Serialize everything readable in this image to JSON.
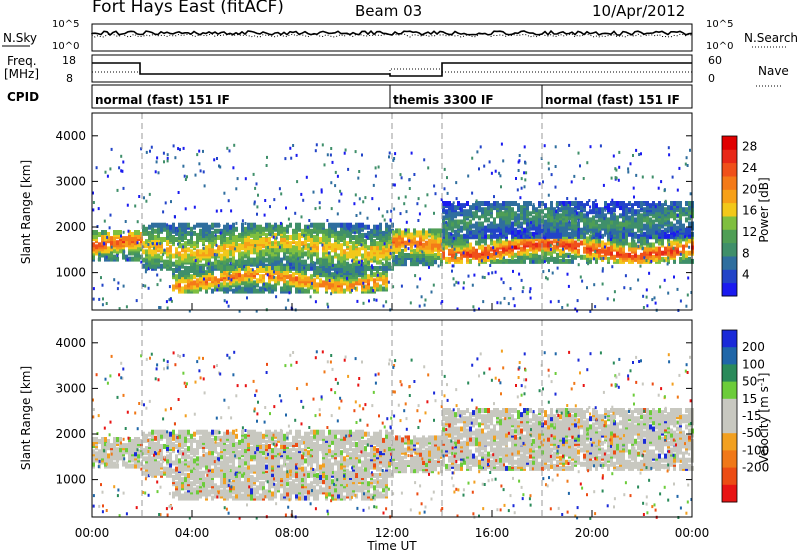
{
  "header": {
    "site": "Fort Hays East (fitACF)",
    "beam": "Beam 03",
    "date": "10/Apr/2012"
  },
  "noise_panel": {
    "left_label": "N.Sky",
    "left_ticks": [
      "10^5",
      "10^0"
    ],
    "right_ticks": [
      "10^5",
      "10^0"
    ],
    "right_label": "N.Search"
  },
  "freq_panel": {
    "left_label_1": "Freq.",
    "left_label_2": "[MHz]",
    "left_ticks": [
      "18",
      "8"
    ],
    "right_ticks": [
      "60",
      "0"
    ],
    "right_label": "Nave"
  },
  "cpid_panel": {
    "label": "CPID",
    "segments": [
      "normal (fast) 151 IF",
      "themis 3300 IF",
      "normal (fast) 151 IF"
    ]
  },
  "colors": {
    "power_scale": [
      "#1a1af0",
      "#2244c8",
      "#2f6e9e",
      "#3f8f6a",
      "#4f9e55",
      "#7fbf3f",
      "#f2c81a",
      "#f7a018",
      "#f47a18",
      "#f0501a",
      "#e82818",
      "#e00000"
    ],
    "velocity_scale": [
      "#1a2ad8",
      "#1f66a8",
      "#2a8a5a",
      "#6ccc3a",
      "#c8c8c0",
      "#c8c8c0",
      "#f2a020",
      "#f07818",
      "#ec4c14",
      "#e81414"
    ]
  },
  "chart_data": [
    {
      "type": "heatmap",
      "panel": "power",
      "x_label": "",
      "y_label": "Slant Range [km]",
      "y_ticks": [
        "4000",
        "3000",
        "2000",
        "1000"
      ],
      "ylim": [
        180,
        4500
      ],
      "colorbar_label": "Power [dB]",
      "colorbar_ticks": [
        "28",
        "24",
        "20",
        "16",
        "12",
        "8",
        "4"
      ],
      "colorbar_range": [
        0,
        30
      ],
      "echo_bands": [
        {
          "t_start": 0.0,
          "t_end": 2.0,
          "r_low": 1350,
          "r_high": 1950,
          "peak_db": 24
        },
        {
          "t_start": 2.0,
          "t_end": 12.0,
          "r_low": 1150,
          "r_high": 2100,
          "peak_db": 18
        },
        {
          "t_start": 3.2,
          "t_end": 11.8,
          "r_low": 650,
          "r_high": 1150,
          "peak_db": 22
        },
        {
          "t_start": 12.0,
          "t_end": 14.0,
          "r_low": 1250,
          "r_high": 2000,
          "peak_db": 22
        },
        {
          "t_start": 14.0,
          "t_end": 24.0,
          "r_low": 1300,
          "r_high": 1850,
          "peak_db": 26
        },
        {
          "t_start": 14.0,
          "t_end": 24.0,
          "r_low": 1850,
          "r_high": 2600,
          "peak_db": 10
        }
      ]
    },
    {
      "type": "heatmap",
      "panel": "velocity",
      "x_label": "Time UT",
      "x_ticks": [
        "00:00",
        "04:00",
        "08:00",
        "12:00",
        "16:00",
        "20:00",
        "00:00"
      ],
      "xlim": [
        0,
        24
      ],
      "y_label": "Slant Range [km]",
      "y_ticks": [
        "4000",
        "3000",
        "2000",
        "1000"
      ],
      "ylim": [
        180,
        4500
      ],
      "colorbar_label": "Velocity [m s^-1]",
      "colorbar_ticks": [
        "200",
        "100",
        "50",
        "15",
        "-15",
        "-50",
        "-100",
        "-200"
      ],
      "colorbar_range": [
        -250,
        250
      ]
    }
  ],
  "cpid_change_times_ut": [
    2.0,
    12.0,
    14.0,
    18.0
  ]
}
